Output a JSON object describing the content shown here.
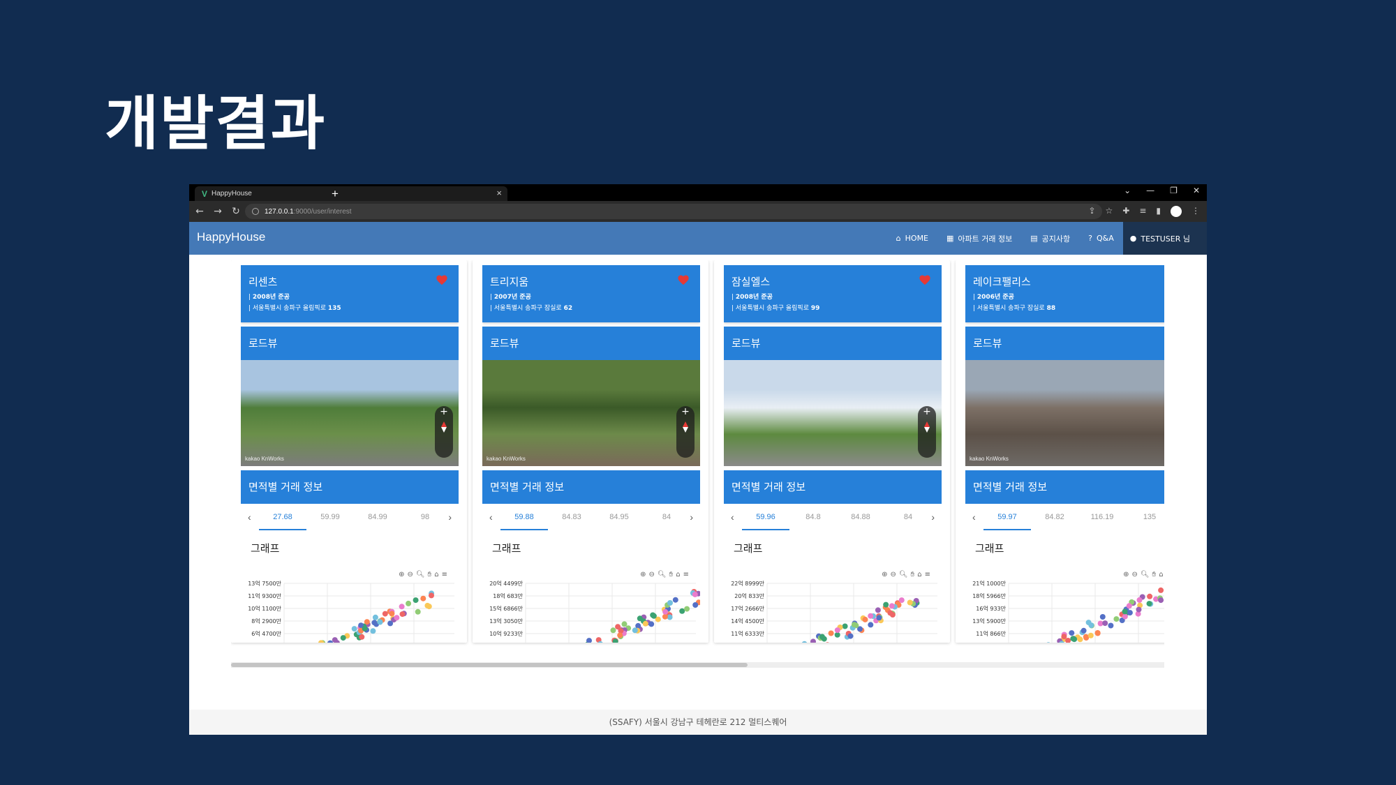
{
  "slide": {
    "title": "개발결과"
  },
  "browser": {
    "tab_title": "HappyHouse",
    "new_tab": "+",
    "url_host": "127.0.0.1",
    "url_path": ":9000/user/interest"
  },
  "navbar": {
    "brand": "HappyHouse",
    "items": [
      {
        "label": "HOME",
        "icon": "home-icon"
      },
      {
        "label": "아파트 거래 정보",
        "icon": "building-icon"
      },
      {
        "label": "공지사항",
        "icon": "clipboard-icon"
      },
      {
        "label": "Q&A",
        "icon": "question-icon"
      },
      {
        "label": "TESTUSER 님",
        "icon": "account-icon"
      }
    ]
  },
  "cards": [
    {
      "name": "리센츠",
      "year": "2008년 준공",
      "addr_prefix": "서울특별시 송파구 올림픽로",
      "addr_no": "135",
      "liked": true,
      "roadview_label": "로드뷰",
      "roadview_attrib": "kakao KnWorks",
      "trade_label": "면적별 거래 정보",
      "graph_label": "그래프",
      "sizes": [
        "27.68",
        "59.99",
        "84.99",
        "98"
      ],
      "active_size": 0,
      "yticks": [
        "13억 7500만",
        "11억 9300만",
        "10억 1100만",
        "8억 2900만",
        "6억 4700만"
      ],
      "rv_colors": [
        "#a8c4e0",
        "#4f7d3a",
        "#6b8f4a",
        "#7c7c7c"
      ]
    },
    {
      "name": "트리지움",
      "year": "2007년 준공",
      "addr_prefix": "서울특별시 송파구 잠실로",
      "addr_no": "62",
      "liked": true,
      "roadview_label": "로드뷰",
      "roadview_attrib": "kakao KnWorks",
      "trade_label": "면적별 거래 정보",
      "graph_label": "그래프",
      "sizes": [
        "59.88",
        "84.83",
        "84.95",
        "84"
      ],
      "active_size": 0,
      "yticks": [
        "20억 4499만",
        "18억 683만",
        "15억 6866만",
        "13억 3050만",
        "10억 9233만"
      ],
      "rv_colors": [
        "#5a7a3c",
        "#3b5a28",
        "#6d8a4a",
        "#7a6a5a"
      ]
    },
    {
      "name": "잠실엘스",
      "year": "2008년 준공",
      "addr_prefix": "서울특별시 송파구 올림픽로",
      "addr_no": "99",
      "liked": true,
      "roadview_label": "로드뷰",
      "roadview_attrib": "",
      "trade_label": "면적별 거래 정보",
      "graph_label": "그래프",
      "sizes": [
        "59.96",
        "84.8",
        "84.88",
        "84"
      ],
      "active_size": 0,
      "yticks": [
        "22억 8999만",
        "20억 833만",
        "17억 2666만",
        "14억 4500만",
        "11억 6333만"
      ],
      "rv_colors": [
        "#c9d9ea",
        "#e8eef4",
        "#5d8a3f",
        "#8a8a8a"
      ]
    },
    {
      "name": "레이크팰리스",
      "year": "2006년 준공",
      "addr_prefix": "서울특별시 송파구 잠실로",
      "addr_no": "88",
      "liked": false,
      "roadview_label": "로드뷰",
      "roadview_attrib": "kakao KnWorks",
      "trade_label": "면적별 거래 정보",
      "graph_label": "그래프",
      "sizes": [
        "59.97",
        "84.82",
        "116.19",
        "135"
      ],
      "active_size": 0,
      "yticks": [
        "21억 1000만",
        "18억 5966만",
        "16억 933만",
        "13억 5900만",
        "11억 866만"
      ],
      "rv_colors": [
        "#9aa7b5",
        "#7d7066",
        "#5c5148",
        "#6e6a66"
      ]
    }
  ],
  "footer": {
    "text": "(SSAFY) 서울시 강남구 테헤란로 212 멀티스퀘어"
  }
}
